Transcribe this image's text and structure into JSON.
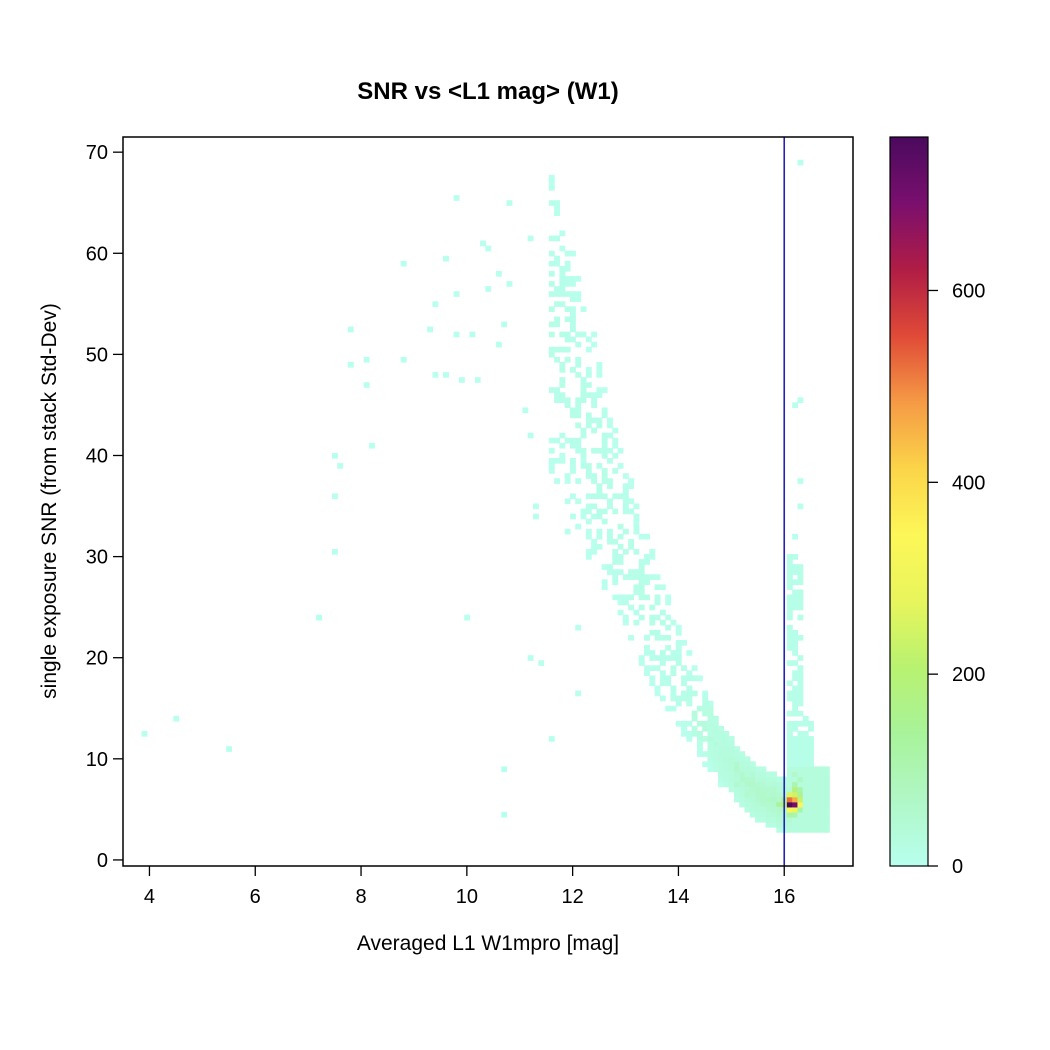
{
  "chart_data": {
    "type": "heatmap",
    "title": "SNR vs <L1 mag> (W1)",
    "xlabel": "Averaged L1 W1mpro [mag]",
    "ylabel": "single exposure SNR (from stack Std-Dev)",
    "xlim": [
      3.5,
      17.3
    ],
    "ylim": [
      -0.6,
      71.5
    ],
    "xticks": [
      4,
      6,
      8,
      10,
      12,
      14,
      16
    ],
    "yticks": [
      0,
      10,
      20,
      30,
      40,
      50,
      60,
      70
    ],
    "reference_line": {
      "axis": "x",
      "value": 16,
      "color": "#2222bb"
    },
    "bin_size": {
      "x": 0.1,
      "y": 0.5
    },
    "colorbar": {
      "min": 0,
      "max": 760,
      "ticks": [
        0,
        200,
        400,
        600
      ],
      "colors": [
        "#b8ffee",
        "#b0f7c6",
        "#a8f39a",
        "#b8f270",
        "#e8f55c",
        "#fdf758",
        "#fbd449",
        "#f59a45",
        "#e04a37",
        "#b01d45",
        "#7a0f6e",
        "#4a0a5e"
      ]
    },
    "ridge": [
      [
        10.8,
        63
      ],
      [
        11.2,
        58
      ],
      [
        11.6,
        53
      ],
      [
        12.0,
        47
      ],
      [
        12.4,
        40
      ],
      [
        12.8,
        34
      ],
      [
        13.2,
        28
      ],
      [
        13.6,
        23
      ],
      [
        14.0,
        18
      ],
      [
        14.4,
        14
      ],
      [
        14.8,
        10.5
      ],
      [
        15.2,
        8
      ],
      [
        15.6,
        6.3
      ],
      [
        15.9,
        5.6
      ],
      [
        16.1,
        5.4
      ],
      [
        16.3,
        6.0
      ]
    ],
    "scatter_points": [
      [
        3.9,
        12.4
      ],
      [
        4.55,
        14.2
      ],
      [
        5.55,
        11.2
      ],
      [
        7.15,
        24.1
      ],
      [
        7.45,
        39.8
      ],
      [
        7.5,
        36.1
      ],
      [
        7.5,
        30.5
      ],
      [
        7.6,
        39.2
      ],
      [
        7.75,
        52.6
      ],
      [
        7.75,
        49.1
      ],
      [
        8.05,
        49.7
      ],
      [
        8.05,
        46.9
      ],
      [
        8.15,
        41.0
      ],
      [
        8.85,
        58.9
      ],
      [
        8.85,
        49.6
      ],
      [
        9.35,
        52.5
      ],
      [
        9.45,
        48.1
      ],
      [
        9.45,
        54.8
      ],
      [
        9.55,
        59.5
      ],
      [
        9.6,
        47.9
      ],
      [
        9.75,
        65.4
      ],
      [
        9.75,
        51.8
      ],
      [
        9.85,
        55.9
      ],
      [
        9.95,
        47.4
      ],
      [
        10.05,
        52.2
      ],
      [
        10.15,
        47.3
      ],
      [
        10.0,
        24.1
      ],
      [
        10.35,
        60.8
      ],
      [
        10.45,
        56.3
      ],
      [
        10.45,
        60.4
      ],
      [
        10.55,
        58.1
      ],
      [
        10.6,
        50.9
      ],
      [
        10.65,
        52.8
      ],
      [
        10.65,
        9.0
      ],
      [
        10.65,
        4.3
      ],
      [
        10.85,
        64.8
      ],
      [
        10.85,
        56.9
      ],
      [
        11.05,
        44.3
      ],
      [
        11.15,
        61.3
      ],
      [
        11.15,
        42.2
      ],
      [
        11.2,
        20.0
      ],
      [
        11.25,
        33.8
      ],
      [
        11.45,
        19.3
      ],
      [
        11.55,
        11.8
      ],
      [
        11.95,
        35.3
      ],
      [
        11.95,
        32.3
      ],
      [
        12.05,
        16.6
      ],
      [
        12.1,
        22.8
      ],
      [
        11.35,
        35.1
      ],
      [
        12.2,
        39.3
      ],
      [
        12.35,
        48.6
      ],
      [
        12.45,
        52.1
      ],
      [
        16.25,
        68.8
      ],
      [
        16.2,
        45.2
      ],
      [
        16.3,
        45.6
      ],
      [
        16.25,
        37.4
      ],
      [
        16.3,
        35.1
      ],
      [
        16.2,
        32.0
      ]
    ],
    "hotspots": [
      [
        15.8,
        5.6,
        60
      ],
      [
        15.9,
        5.6,
        130
      ],
      [
        16.0,
        5.6,
        210
      ],
      [
        16.0,
        6.1,
        160
      ],
      [
        16.1,
        5.6,
        760
      ],
      [
        16.1,
        6.1,
        520
      ],
      [
        16.2,
        5.6,
        700
      ],
      [
        16.2,
        6.1,
        460
      ],
      [
        16.1,
        5.1,
        330
      ],
      [
        16.2,
        5.1,
        300
      ],
      [
        16.1,
        6.6,
        260
      ],
      [
        16.2,
        6.6,
        240
      ],
      [
        16.3,
        5.6,
        340
      ],
      [
        16.3,
        6.1,
        230
      ],
      [
        16.3,
        6.6,
        150
      ],
      [
        16.2,
        7.1,
        190
      ],
      [
        16.3,
        7.1,
        120
      ],
      [
        16.2,
        7.6,
        110
      ],
      [
        16.3,
        8.1,
        70
      ],
      [
        16.2,
        8.6,
        60
      ],
      [
        15.7,
        5.6,
        50
      ],
      [
        16.1,
        4.6,
        120
      ],
      [
        16.2,
        4.6,
        110
      ],
      [
        16.3,
        5.1,
        120
      ],
      [
        15.5,
        6.3,
        40
      ],
      [
        15.2,
        7.3,
        30
      ]
    ]
  }
}
